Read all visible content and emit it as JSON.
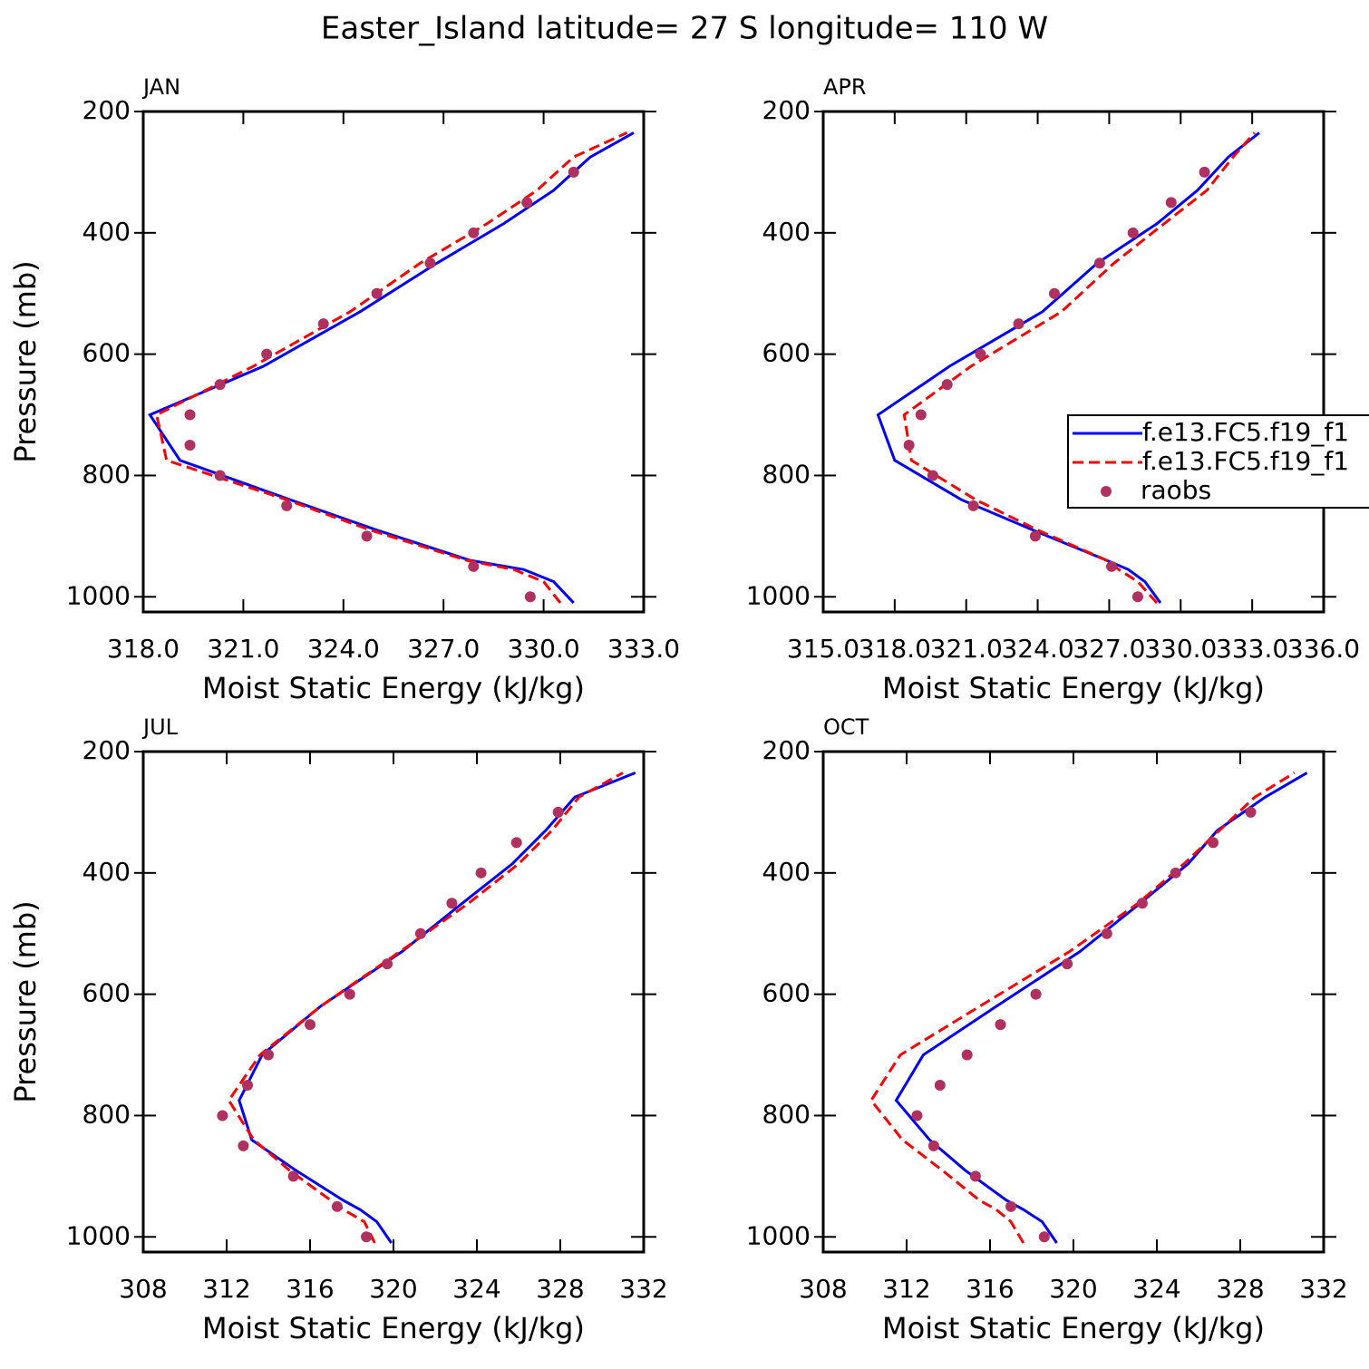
{
  "title": "Easter_Island  latitude= 27 S longitude= 110 W",
  "chart_data": [
    {
      "type": "line",
      "title": "JAN",
      "xlabel": "Moist Static Energy (kJ/kg)",
      "ylabel": "Pressure (mb)",
      "xlim": [
        318,
        333
      ],
      "xticks": [
        {
          "value": 318,
          "label": "318.0"
        },
        {
          "value": 321,
          "label": "321.0"
        },
        {
          "value": 324,
          "label": "324.0"
        },
        {
          "value": 327,
          "label": "327.0"
        },
        {
          "value": 330,
          "label": "330.0"
        },
        {
          "value": 333,
          "label": "333.0"
        }
      ],
      "ylim": [
        1025,
        200
      ],
      "yticks": [
        200,
        400,
        600,
        800,
        1000
      ],
      "series": [
        {
          "name": "f.e13.FC5.f19_f1",
          "color": "#0000ff",
          "style": "solid",
          "x": [
            330.9,
            330.3,
            329.4,
            327.8,
            325.0,
            322.4,
            319.1,
            318.2,
            321.6,
            324.5,
            326.8,
            328.8,
            330.3,
            331.4,
            332.7
          ],
          "y": [
            1010,
            975,
            955,
            940,
            890,
            840,
            775,
            700,
            620,
            530,
            450,
            385,
            330,
            275,
            235
          ]
        },
        {
          "name": "f.e13.FC5.f19_f1",
          "color": "#ff0000",
          "style": "dashed",
          "x": [
            330.5,
            330.0,
            329.1,
            327.7,
            324.8,
            322.3,
            318.7,
            318.4,
            321.3,
            324.2,
            326.3,
            328.3,
            329.8,
            330.9,
            332.5
          ],
          "y": [
            1010,
            975,
            955,
            940,
            890,
            840,
            775,
            700,
            620,
            530,
            450,
            385,
            330,
            275,
            235
          ]
        },
        {
          "name": "raobs",
          "color": "#b03060",
          "style": "markers",
          "x": [
            329.6,
            327.9,
            324.7,
            322.3,
            320.3,
            319.4,
            319.4,
            320.3,
            321.7,
            323.4,
            325.0,
            326.6,
            327.9,
            329.5,
            330.9
          ],
          "y": [
            1000,
            950,
            900,
            850,
            800,
            750,
            700,
            650,
            600,
            550,
            500,
            450,
            400,
            350,
            300
          ]
        }
      ]
    },
    {
      "type": "line",
      "title": "APR",
      "xlabel": "Moist Static Energy (kJ/kg)",
      "legend": "right",
      "xlim": [
        315,
        336
      ],
      "xticks": [
        {
          "value": 315,
          "label": "315.0"
        },
        {
          "value": 318,
          "label": "318.0"
        },
        {
          "value": 321,
          "label": "321.0"
        },
        {
          "value": 324,
          "label": "324.0"
        },
        {
          "value": 327,
          "label": "327.0"
        },
        {
          "value": 330,
          "label": "330.0"
        },
        {
          "value": 333,
          "label": "333.0"
        },
        {
          "value": 336,
          "label": "336.0"
        }
      ],
      "ylim": [
        1025,
        200
      ],
      "yticks": [
        200,
        400,
        600,
        800,
        1000
      ],
      "series": [
        {
          "name": "f.e13.FC5.f19_f1",
          "color": "#0000ff",
          "style": "solid",
          "x": [
            329.15,
            328.5,
            327.8,
            326.9,
            323.8,
            320.8,
            318.0,
            317.3,
            320.3,
            324.2,
            326.5,
            329.0,
            330.7,
            332.0,
            333.3
          ],
          "y": [
            1010,
            975,
            955,
            940,
            890,
            840,
            775,
            700,
            620,
            530,
            450,
            385,
            330,
            275,
            235
          ]
        },
        {
          "name": "f.e13.FC5.f19_f1",
          "color": "#ff0000",
          "style": "dashed",
          "x": [
            329.0,
            328.2,
            327.4,
            326.9,
            324.0,
            321.4,
            318.7,
            318.4,
            321.2,
            325.0,
            327.2,
            329.3,
            331.1,
            332.2,
            333.1
          ],
          "y": [
            1010,
            975,
            955,
            940,
            890,
            840,
            775,
            700,
            620,
            530,
            450,
            385,
            330,
            275,
            235
          ]
        },
        {
          "name": "raobs",
          "color": "#b03060",
          "style": "markers",
          "x": [
            328.2,
            327.1,
            323.9,
            321.3,
            319.6,
            318.6,
            319.1,
            320.2,
            321.6,
            323.2,
            324.7,
            326.6,
            328.0,
            329.6,
            331.0
          ],
          "y": [
            1000,
            950,
            900,
            850,
            800,
            750,
            700,
            650,
            600,
            550,
            500,
            450,
            400,
            350,
            300
          ]
        }
      ]
    },
    {
      "type": "line",
      "title": "JUL",
      "xlabel": "Moist Static Energy (kJ/kg)",
      "ylabel": "Pressure (mb)",
      "xlim": [
        308,
        332
      ],
      "xticks": [
        308,
        312,
        316,
        320,
        324,
        328,
        332
      ],
      "ylim": [
        1025,
        200
      ],
      "yticks": [
        200,
        400,
        600,
        800,
        1000
      ],
      "series": [
        {
          "name": "f.e13.FC5.f19_f1",
          "color": "#0000ff",
          "style": "solid",
          "x": [
            319.9,
            319.2,
            318.4,
            317.6,
            315.3,
            313.2,
            312.6,
            313.7,
            316.5,
            320.4,
            323.3,
            325.7,
            327.3,
            328.7,
            331.6
          ],
          "y": [
            1010,
            975,
            955,
            940,
            890,
            840,
            775,
            700,
            620,
            530,
            450,
            385,
            330,
            275,
            235
          ]
        },
        {
          "name": "f.e13.FC5.f19_f1",
          "color": "#ff0000",
          "style": "dashed",
          "x": [
            319.1,
            318.6,
            317.6,
            317.0,
            315.0,
            313.3,
            312.1,
            313.6,
            316.5,
            320.3,
            323.6,
            326.0,
            327.6,
            328.9,
            331.0
          ],
          "y": [
            1010,
            975,
            955,
            940,
            890,
            840,
            775,
            700,
            620,
            530,
            450,
            385,
            330,
            275,
            235
          ]
        },
        {
          "name": "raobs",
          "color": "#b03060",
          "style": "markers",
          "x": [
            318.7,
            317.3,
            315.2,
            312.8,
            311.8,
            313.0,
            314.0,
            316.0,
            317.9,
            319.7,
            321.3,
            322.8,
            324.2,
            325.9,
            327.9
          ],
          "y": [
            1000,
            950,
            900,
            850,
            800,
            750,
            700,
            650,
            600,
            550,
            500,
            450,
            400,
            350,
            300
          ]
        }
      ]
    },
    {
      "type": "line",
      "title": "OCT",
      "xlabel": "Moist Static Energy (kJ/kg)",
      "xlim": [
        308,
        332
      ],
      "xticks": [
        308,
        312,
        316,
        320,
        324,
        328,
        332
      ],
      "ylim": [
        1025,
        200
      ],
      "yticks": [
        200,
        400,
        600,
        800,
        1000
      ],
      "series": [
        {
          "name": "f.e13.FC5.f19_f1",
          "color": "#0000ff",
          "style": "solid",
          "x": [
            319.2,
            318.5,
            317.6,
            316.8,
            314.8,
            313.1,
            311.5,
            312.8,
            316.3,
            320.3,
            323.2,
            325.5,
            326.9,
            329.2,
            331.2
          ],
          "y": [
            1010,
            975,
            955,
            940,
            890,
            840,
            775,
            700,
            620,
            530,
            450,
            385,
            330,
            275,
            235
          ]
        },
        {
          "name": "f.e13.FC5.f19_f1",
          "color": "#ff0000",
          "style": "dashed",
          "x": [
            317.6,
            317.0,
            316.3,
            315.5,
            313.7,
            311.8,
            310.3,
            311.7,
            315.5,
            319.8,
            323.1,
            325.3,
            327.0,
            328.7,
            330.6
          ],
          "y": [
            1010,
            975,
            955,
            940,
            890,
            840,
            775,
            700,
            620,
            530,
            450,
            385,
            330,
            275,
            235
          ]
        },
        {
          "name": "raobs",
          "color": "#b03060",
          "style": "markers",
          "x": [
            318.6,
            317.0,
            315.3,
            313.3,
            312.5,
            313.6,
            314.9,
            316.5,
            318.2,
            319.7,
            321.6,
            323.3,
            324.9,
            326.7,
            328.5
          ],
          "y": [
            1000,
            950,
            900,
            850,
            800,
            750,
            700,
            650,
            600,
            550,
            500,
            450,
            400,
            350,
            300
          ]
        }
      ]
    }
  ]
}
